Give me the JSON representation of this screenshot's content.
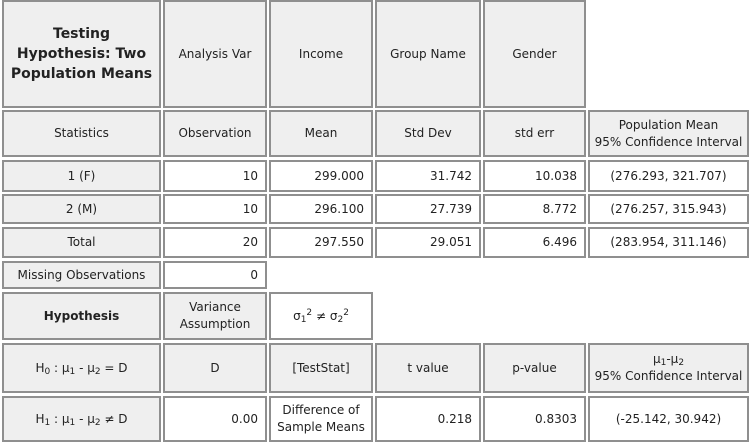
{
  "header": {
    "title_lines": [
      "Testing",
      "Hypothesis: Two",
      "Population Means"
    ],
    "analysis_var_label": "Analysis Var",
    "analysis_var_value": "Income",
    "group_name_label": "Group Name",
    "group_name_value": "Gender"
  },
  "stats_header": {
    "statistics": "Statistics",
    "observation": "Observation",
    "mean": "Mean",
    "std_dev": "Std Dev",
    "std_err": "std err",
    "ci_line1": "Population Mean",
    "ci_line2": "95% Confidence Interval"
  },
  "rows": [
    {
      "label": "1 (F)",
      "observation": "10",
      "mean": "299.000",
      "std_dev": "31.742",
      "std_err": "10.038",
      "ci": "(276.293, 321.707)"
    },
    {
      "label": "2 (M)",
      "observation": "10",
      "mean": "296.100",
      "std_dev": "27.739",
      "std_err": "8.772",
      "ci": "(276.257, 315.943)"
    },
    {
      "label": "Total",
      "observation": "20",
      "mean": "297.550",
      "std_dev": "29.051",
      "std_err": "6.496",
      "ci": "(283.954, 311.146)"
    }
  ],
  "missing": {
    "label": "Missing Observations",
    "value": "0"
  },
  "hypothesis": {
    "label": "Hypothesis",
    "variance_line1": "Variance",
    "variance_line2": "Assumption",
    "sigma": "σ",
    "sub1": "1",
    "sub2": "2",
    "sup": "2",
    "neq": " ≠ "
  },
  "h0_row": {
    "h": "H",
    "h_sub": "0",
    "colon": " : ",
    "mu": "μ",
    "sub1": "1",
    "sub2": "2",
    "minus": " - ",
    "eq": " = D",
    "d_label": "D",
    "teststat": "[TestStat]",
    "t_value": "t value",
    "p_value": "p-value",
    "ci_line2": "95% Confidence Interval"
  },
  "h1_row": {
    "h_sub": "1",
    "neq": " ≠ D",
    "d_value": "0.00",
    "diff_line1": "Difference of",
    "diff_line2": "Sample Means",
    "t_value": "0.218",
    "p_value": "0.8303",
    "ci": "(-25.142, 30.942)"
  }
}
